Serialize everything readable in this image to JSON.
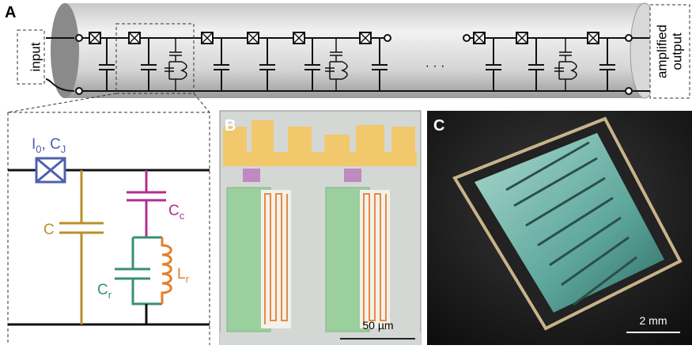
{
  "panel_a": {
    "label": "A",
    "input": "input",
    "output": [
      "amplified",
      "output"
    ],
    "ellipsis": "· · ·"
  },
  "inset": {
    "bias": [
      {
        "text": "I",
        "sub": "0"
      },
      {
        "text": ", C",
        "sub": "J"
      }
    ],
    "c": "C",
    "cc": {
      "text": "C",
      "sub": "c"
    },
    "cr": {
      "text": "C",
      "sub": "r"
    },
    "lr": {
      "text": "L",
      "sub": "r"
    }
  },
  "panel_b": {
    "label": "B",
    "scale": "50 µm"
  },
  "panel_c": {
    "label": "C",
    "scale": "2 mm"
  }
}
